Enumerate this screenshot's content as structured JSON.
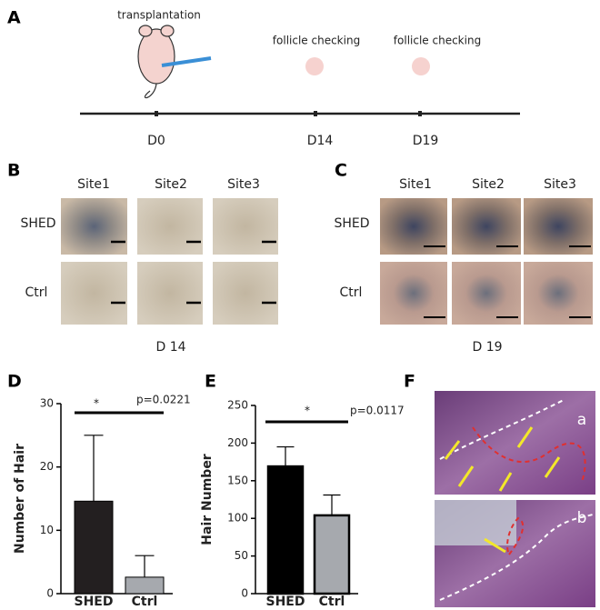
{
  "panel_labels": [
    "A",
    "B",
    "C",
    "D",
    "E",
    "F"
  ],
  "timeline": {
    "event": "transplantation",
    "checks": [
      "follicle checking",
      "follicle checking"
    ],
    "days": [
      "D0",
      "D14",
      "D19"
    ]
  },
  "panel_b": {
    "columns": [
      "Site1",
      "Site2",
      "Site3"
    ],
    "rows": [
      "SHED",
      "Ctrl"
    ],
    "caption": "D 14"
  },
  "panel_c": {
    "columns": [
      "Site1",
      "Site2",
      "Site3"
    ],
    "rows": [
      "SHED",
      "Ctrl"
    ],
    "caption": "D 19"
  },
  "panel_f": {
    "insets": [
      "a",
      "b"
    ]
  },
  "chart_data": [
    {
      "type": "bar",
      "y_label": "Number of Hair",
      "categories": [
        "SHED",
        "Ctrl"
      ],
      "values": [
        14.6,
        2.6
      ],
      "errors": [
        10.4,
        3.4
      ],
      "colors": [
        "#231f20",
        "#a6a9ae"
      ],
      "ylim": [
        0,
        30
      ],
      "yticks": [
        0,
        10,
        20,
        30
      ],
      "annotations": [
        "*",
        "p=0.0221"
      ]
    },
    {
      "type": "bar",
      "y_label": "Hair Number",
      "categories": [
        "SHED",
        "Ctrl"
      ],
      "values": [
        169,
        104
      ],
      "errors": [
        26,
        27
      ],
      "colors": [
        "#000000",
        "#a6a9ae"
      ],
      "ylim": [
        0,
        250
      ],
      "yticks": [
        0,
        50,
        100,
        150,
        200,
        250
      ],
      "annotations": [
        "*",
        "p=0.0117"
      ]
    }
  ]
}
